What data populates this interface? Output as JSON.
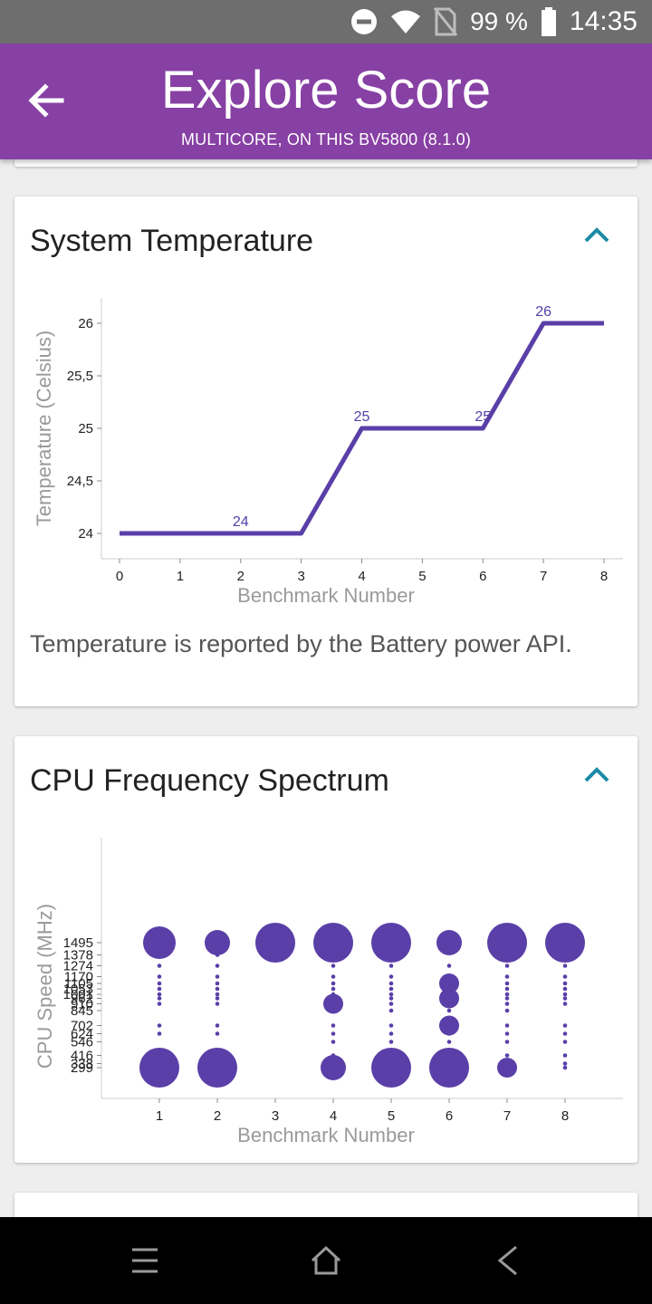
{
  "status_bar": {
    "battery_percent": "99 %",
    "time": "14:35",
    "icons": [
      "do-not-disturb-icon",
      "wifi-icon",
      "no-sim-icon",
      "battery-icon"
    ]
  },
  "app_bar": {
    "title": "Explore Score",
    "subtitle": "MULTICORE, ON THIS BV5800 (8.1.0)",
    "back_icon": "back-arrow-icon"
  },
  "temperature_card": {
    "title": "System Temperature",
    "toggle_icon": "chevron-up-icon",
    "note": "Temperature is reported by the Battery power API.",
    "chart_data": {
      "type": "line",
      "x": [
        0,
        3,
        4,
        6,
        7,
        8
      ],
      "y": [
        24,
        24,
        25,
        25,
        26,
        26
      ],
      "data_labels": [
        {
          "x": 2,
          "y": 24,
          "text": "24"
        },
        {
          "x": 4,
          "y": 25,
          "text": "25"
        },
        {
          "x": 6,
          "y": 25,
          "text": "25"
        },
        {
          "x": 7,
          "y": 26,
          "text": "26"
        }
      ],
      "xticks": [
        "0",
        "1",
        "2",
        "3",
        "4",
        "5",
        "6",
        "7",
        "8"
      ],
      "yticks": [
        {
          "v": 24,
          "t": "24"
        },
        {
          "v": 24.5,
          "t": "24,5"
        },
        {
          "v": 25,
          "t": "25"
        },
        {
          "v": 25.5,
          "t": "25,5"
        },
        {
          "v": 26,
          "t": "26"
        }
      ],
      "xlim": [
        0,
        8
      ],
      "ylim": [
        24,
        26
      ],
      "xlabel": "Benchmark Number",
      "ylabel": "Temperature (Celsius)",
      "color": "#5a3fa8"
    }
  },
  "cpu_card": {
    "title": "CPU Frequency Spectrum",
    "toggle_icon": "chevron-up-icon",
    "chart_data": {
      "type": "scatter",
      "xlabel": "Benchmark Number",
      "ylabel": "CPU Speed (MHz)",
      "xticks": [
        "1",
        "2",
        "3",
        "4",
        "5",
        "6",
        "7",
        "8"
      ],
      "yticks": [
        "1495",
        "1378",
        "1274",
        "1170",
        "1105",
        "1053",
        "1001",
        "962",
        "910",
        "845",
        "702",
        "624",
        "546",
        "416",
        "338",
        "299"
      ],
      "color": "#5a3fa8",
      "series": [
        {
          "benchmark": 1,
          "points": [
            [
              1495,
              "l"
            ],
            [
              1378,
              "t"
            ],
            [
              1274,
              "t"
            ],
            [
              1170,
              "t"
            ],
            [
              1105,
              "t"
            ],
            [
              1053,
              "t"
            ],
            [
              1001,
              "t"
            ],
            [
              962,
              "t"
            ],
            [
              910,
              "t"
            ],
            [
              702,
              "t"
            ],
            [
              624,
              "t"
            ],
            [
              299,
              "xl"
            ]
          ]
        },
        {
          "benchmark": 2,
          "points": [
            [
              1495,
              "m"
            ],
            [
              1378,
              "t"
            ],
            [
              1274,
              "t"
            ],
            [
              1170,
              "t"
            ],
            [
              1105,
              "t"
            ],
            [
              1053,
              "t"
            ],
            [
              1001,
              "t"
            ],
            [
              962,
              "t"
            ],
            [
              910,
              "t"
            ],
            [
              702,
              "t"
            ],
            [
              624,
              "t"
            ],
            [
              299,
              "xl"
            ]
          ]
        },
        {
          "benchmark": 3,
          "points": [
            [
              1495,
              "xl"
            ]
          ]
        },
        {
          "benchmark": 4,
          "points": [
            [
              1495,
              "xl"
            ],
            [
              1274,
              "t"
            ],
            [
              1170,
              "t"
            ],
            [
              1105,
              "t"
            ],
            [
              1053,
              "t"
            ],
            [
              1001,
              "t"
            ],
            [
              962,
              "t"
            ],
            [
              910,
              "s"
            ],
            [
              845,
              "t"
            ],
            [
              702,
              "t"
            ],
            [
              624,
              "t"
            ],
            [
              546,
              "t"
            ],
            [
              416,
              "t"
            ],
            [
              299,
              "m"
            ]
          ]
        },
        {
          "benchmark": 5,
          "points": [
            [
              1495,
              "xl"
            ],
            [
              1274,
              "t"
            ],
            [
              1170,
              "t"
            ],
            [
              1105,
              "t"
            ],
            [
              1053,
              "t"
            ],
            [
              1001,
              "t"
            ],
            [
              962,
              "t"
            ],
            [
              910,
              "t"
            ],
            [
              845,
              "t"
            ],
            [
              702,
              "t"
            ],
            [
              624,
              "t"
            ],
            [
              546,
              "t"
            ],
            [
              416,
              "t"
            ],
            [
              299,
              "xl"
            ]
          ]
        },
        {
          "benchmark": 6,
          "points": [
            [
              1495,
              "m"
            ],
            [
              1274,
              "t"
            ],
            [
              1170,
              "t"
            ],
            [
              1105,
              "s"
            ],
            [
              1053,
              "t"
            ],
            [
              1001,
              "t"
            ],
            [
              962,
              "s"
            ],
            [
              910,
              "t"
            ],
            [
              845,
              "t"
            ],
            [
              702,
              "s"
            ],
            [
              624,
              "t"
            ],
            [
              546,
              "t"
            ],
            [
              416,
              "t"
            ],
            [
              299,
              "xl"
            ]
          ]
        },
        {
          "benchmark": 7,
          "points": [
            [
              1495,
              "xl"
            ],
            [
              1378,
              "t"
            ],
            [
              1274,
              "t"
            ],
            [
              1170,
              "t"
            ],
            [
              1105,
              "t"
            ],
            [
              1053,
              "t"
            ],
            [
              1001,
              "t"
            ],
            [
              962,
              "t"
            ],
            [
              910,
              "t"
            ],
            [
              845,
              "t"
            ],
            [
              702,
              "t"
            ],
            [
              624,
              "t"
            ],
            [
              546,
              "t"
            ],
            [
              416,
              "t"
            ],
            [
              299,
              "s"
            ]
          ]
        },
        {
          "benchmark": 8,
          "points": [
            [
              1495,
              "xl"
            ],
            [
              1378,
              "t"
            ],
            [
              1274,
              "t"
            ],
            [
              1170,
              "t"
            ],
            [
              1105,
              "t"
            ],
            [
              1053,
              "t"
            ],
            [
              1001,
              "t"
            ],
            [
              962,
              "t"
            ],
            [
              910,
              "t"
            ],
            [
              702,
              "t"
            ],
            [
              624,
              "t"
            ],
            [
              546,
              "t"
            ],
            [
              416,
              "t"
            ],
            [
              338,
              "t"
            ],
            [
              299,
              "t"
            ]
          ]
        }
      ]
    }
  },
  "nav_bar": {
    "icons": [
      "recents-menu-icon",
      "home-icon",
      "back-icon"
    ]
  }
}
